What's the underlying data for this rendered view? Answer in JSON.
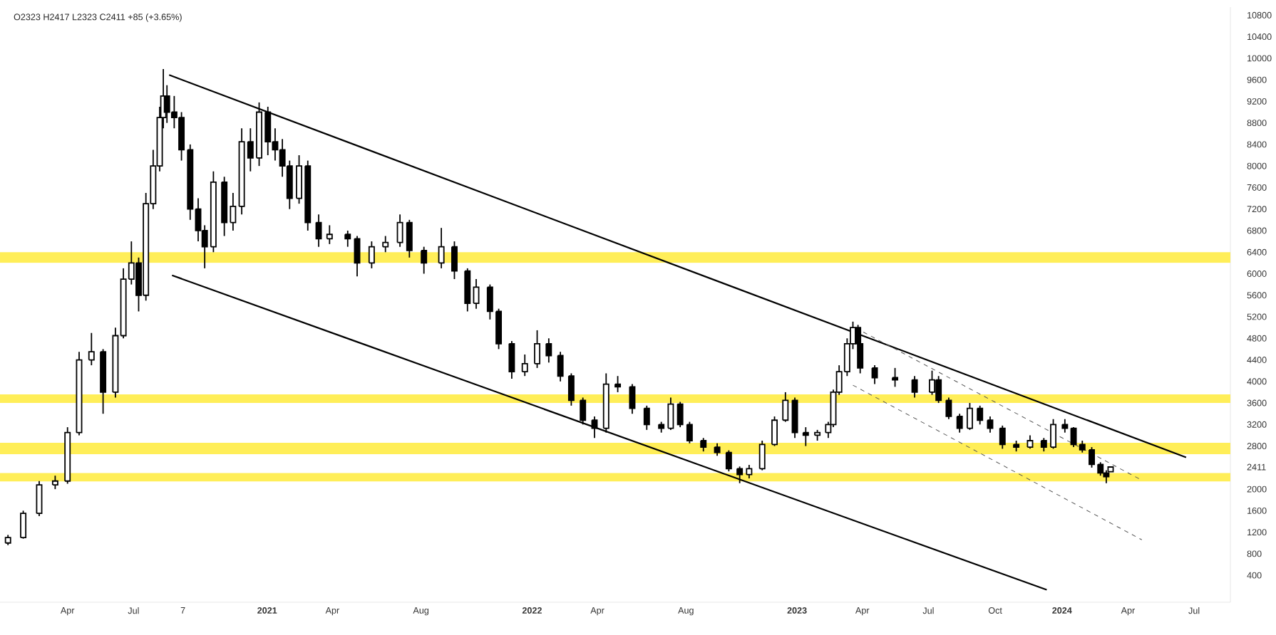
{
  "chart_data": {
    "type": "candlestick",
    "title": "O2323  H2417  L2323  C2411  +85 (+3.65%)",
    "xlim": [
      "2019-12-30",
      "2024-08-20"
    ],
    "ylim": [
      -100,
      10950
    ],
    "xticks": [
      {
        "value": "2020-04-01",
        "label": "Apr"
      },
      {
        "value": "2020-07-01",
        "label": "Jul"
      },
      {
        "value": "2020-09-07",
        "label": "7"
      },
      {
        "value": "2021-01-01",
        "label": "2021"
      },
      {
        "value": "2021-04-01",
        "label": "Apr"
      },
      {
        "value": "2021-08-01",
        "label": "Aug"
      },
      {
        "value": "2022-01-01",
        "label": "2022"
      },
      {
        "value": "2022-04-01",
        "label": "Apr"
      },
      {
        "value": "2022-08-01",
        "label": "Aug"
      },
      {
        "value": "2023-01-01",
        "label": "2023"
      },
      {
        "value": "2023-04-01",
        "label": "Apr"
      },
      {
        "value": "2023-07-01",
        "label": "Jul"
      },
      {
        "value": "2023-10-01",
        "label": "Oct"
      },
      {
        "value": "2024-01-01",
        "label": "2024"
      },
      {
        "value": "2024-04-01",
        "label": "Apr"
      },
      {
        "value": "2024-07-01",
        "label": "Jul"
      }
    ],
    "yticks": [
      400,
      800,
      1200,
      1600,
      2000,
      2411,
      2800,
      3200,
      3600,
      4000,
      4400,
      4800,
      5200,
      5600,
      6000,
      6400,
      6800,
      7200,
      7600,
      8000,
      8400,
      8800,
      9200,
      9600,
      10000,
      10400,
      10800
    ],
    "bands": [
      {
        "axis": "y",
        "from": 6200,
        "to": 6400,
        "color": "#ffee58"
      },
      {
        "axis": "y",
        "from": 3600,
        "to": 3760,
        "color": "#ffee58"
      },
      {
        "axis": "y",
        "from": 2650,
        "to": 2860,
        "color": "#ffee58"
      },
      {
        "axis": "y",
        "from": 2140,
        "to": 2300,
        "color": "#ffee58"
      }
    ],
    "series": [
      {
        "type": "candlestick",
        "color": "#000000",
        "x": [
          "2020-01-10",
          "2020-01-31",
          "2020-02-22",
          "2020-03-15",
          "2020-04-01",
          "2020-04-17",
          "2020-05-04",
          "2020-05-20",
          "2020-06-06",
          "2020-06-17",
          "2020-06-28",
          "2020-07-08",
          "2020-07-18",
          "2020-07-28",
          "2020-08-06",
          "2020-08-11",
          "2020-08-16",
          "2020-08-26",
          "2020-09-05",
          "2020-09-17",
          "2020-09-28",
          "2020-10-07",
          "2020-10-19",
          "2020-11-03",
          "2020-11-15",
          "2020-11-27",
          "2020-12-09",
          "2020-12-21",
          "2021-01-02",
          "2021-01-12",
          "2021-01-22",
          "2021-02-01",
          "2021-02-14",
          "2021-02-26",
          "2021-03-13",
          "2021-03-28",
          "2021-04-22",
          "2021-05-05",
          "2021-05-25",
          "2021-06-13",
          "2021-07-03",
          "2021-07-16",
          "2021-08-05",
          "2021-08-29",
          "2021-09-16",
          "2021-10-04",
          "2021-10-16",
          "2021-11-04",
          "2021-11-16",
          "2021-12-04",
          "2021-12-22",
          "2022-01-08",
          "2022-01-24",
          "2022-02-09",
          "2022-02-24",
          "2022-03-12",
          "2022-03-28",
          "2022-04-13",
          "2022-04-29",
          "2022-05-19",
          "2022-06-08",
          "2022-06-28",
          "2022-07-11",
          "2022-07-24",
          "2022-08-06",
          "2022-08-25",
          "2022-09-13",
          "2022-09-29",
          "2022-10-14",
          "2022-10-27",
          "2022-11-14",
          "2022-12-01",
          "2022-12-16",
          "2022-12-29",
          "2023-01-13",
          "2023-01-29",
          "2023-02-13",
          "2023-02-20",
          "2023-02-28",
          "2023-03-11",
          "2023-03-19",
          "2023-03-26",
          "2023-03-29",
          "2023-04-18",
          "2023-05-16",
          "2023-06-12",
          "2023-07-06",
          "2023-07-15",
          "2023-07-29",
          "2023-08-13",
          "2023-08-27",
          "2023-09-10",
          "2023-09-24",
          "2023-10-11",
          "2023-10-30",
          "2023-11-18",
          "2023-12-07",
          "2023-12-20",
          "2024-01-05",
          "2024-01-17",
          "2024-01-29",
          "2024-02-11",
          "2024-02-23",
          "2024-03-02",
          "2024-03-08"
        ],
        "ohlc": [
          [
            1000,
            1150,
            960,
            1100
          ],
          [
            1100,
            1600,
            1080,
            1550
          ],
          [
            1550,
            2150,
            1500,
            2080
          ],
          [
            2080,
            2250,
            2000,
            2150
          ],
          [
            2150,
            3150,
            2100,
            3050
          ],
          [
            3050,
            4550,
            3000,
            4400
          ],
          [
            4400,
            4900,
            4300,
            4550
          ],
          [
            4550,
            4600,
            3400,
            3800
          ],
          [
            3800,
            5000,
            3700,
            4850
          ],
          [
            4850,
            6100,
            4800,
            5900
          ],
          [
            5900,
            6600,
            5800,
            6200
          ],
          [
            6200,
            6300,
            5300,
            5600
          ],
          [
            5600,
            7500,
            5500,
            7300
          ],
          [
            7300,
            8300,
            7200,
            8000
          ],
          [
            8000,
            9100,
            7900,
            8900
          ],
          [
            8900,
            9800,
            8700,
            9300
          ],
          [
            9300,
            9500,
            8800,
            9000
          ],
          [
            9000,
            9300,
            8700,
            8900
          ],
          [
            8900,
            9000,
            8100,
            8300
          ],
          [
            8300,
            8400,
            7000,
            7200
          ],
          [
            7200,
            7400,
            6600,
            6800
          ],
          [
            6800,
            6900,
            6100,
            6500
          ],
          [
            6500,
            7900,
            6400,
            7700
          ],
          [
            7700,
            7800,
            6700,
            6950
          ],
          [
            6950,
            7500,
            6800,
            7250
          ],
          [
            7250,
            8700,
            7100,
            8450
          ],
          [
            8450,
            8700,
            7900,
            8150
          ],
          [
            8150,
            9180,
            8000,
            9000
          ],
          [
            9000,
            9100,
            8200,
            8450
          ],
          [
            8450,
            8700,
            8100,
            8300
          ],
          [
            8300,
            8500,
            7800,
            8000
          ],
          [
            8000,
            8100,
            7200,
            7400
          ],
          [
            7400,
            8200,
            7300,
            8000
          ],
          [
            8000,
            8100,
            6800,
            6950
          ],
          [
            6950,
            7100,
            6500,
            6650
          ],
          [
            6650,
            6900,
            6550,
            6730
          ],
          [
            6730,
            6800,
            6500,
            6650
          ],
          [
            6650,
            6700,
            5950,
            6200
          ],
          [
            6200,
            6600,
            6100,
            6500
          ],
          [
            6500,
            6700,
            6400,
            6580
          ],
          [
            6580,
            7100,
            6500,
            6950
          ],
          [
            6950,
            7000,
            6300,
            6430
          ],
          [
            6430,
            6500,
            6000,
            6200
          ],
          [
            6200,
            6850,
            6100,
            6500
          ],
          [
            6500,
            6600,
            5900,
            6050
          ],
          [
            6050,
            6100,
            5300,
            5450
          ],
          [
            5450,
            5900,
            5350,
            5750
          ],
          [
            5750,
            5800,
            5150,
            5300
          ],
          [
            5300,
            5350,
            4600,
            4700
          ],
          [
            4700,
            4750,
            4050,
            4180
          ],
          [
            4180,
            4500,
            4100,
            4330
          ],
          [
            4330,
            4950,
            4250,
            4700
          ],
          [
            4700,
            4800,
            4350,
            4480
          ],
          [
            4480,
            4550,
            4000,
            4100
          ],
          [
            4100,
            4150,
            3550,
            3650
          ],
          [
            3650,
            3700,
            3200,
            3280
          ],
          [
            3280,
            3350,
            2950,
            3130
          ],
          [
            3130,
            4150,
            3050,
            3950
          ],
          [
            3950,
            4100,
            3800,
            3900
          ],
          [
            3900,
            3950,
            3400,
            3500
          ],
          [
            3500,
            3550,
            3100,
            3200
          ],
          [
            3200,
            3250,
            3050,
            3130
          ],
          [
            3130,
            3700,
            3100,
            3580
          ],
          [
            3580,
            3620,
            3150,
            3200
          ],
          [
            3200,
            3250,
            2850,
            2900
          ],
          [
            2900,
            2950,
            2700,
            2780
          ],
          [
            2780,
            2850,
            2620,
            2680
          ],
          [
            2680,
            2720,
            2330,
            2380
          ],
          [
            2380,
            2420,
            2110,
            2270
          ],
          [
            2270,
            2450,
            2200,
            2380
          ],
          [
            2380,
            2900,
            2350,
            2830
          ],
          [
            2830,
            3350,
            2800,
            3280
          ],
          [
            3280,
            3800,
            3250,
            3650
          ],
          [
            3650,
            3700,
            2950,
            3050
          ],
          [
            3050,
            3150,
            2800,
            3000
          ],
          [
            3000,
            3100,
            2900,
            3050
          ],
          [
            3050,
            3250,
            2950,
            3200
          ],
          [
            3200,
            3850,
            3150,
            3800
          ],
          [
            3800,
            4300,
            3750,
            4180
          ],
          [
            4180,
            4800,
            4100,
            4700
          ],
          [
            4700,
            5110,
            4600,
            5000
          ],
          [
            5000,
            5050,
            4550,
            4700
          ],
          [
            4700,
            4750,
            4150,
            4250
          ],
          [
            4250,
            4300,
            3950,
            4070
          ],
          [
            4070,
            4250,
            3900,
            4030
          ],
          [
            4030,
            4100,
            3700,
            3800
          ],
          [
            3800,
            4200,
            3750,
            4030
          ],
          [
            4030,
            4100,
            3600,
            3650
          ],
          [
            3650,
            3700,
            3300,
            3350
          ],
          [
            3350,
            3400,
            3050,
            3130
          ],
          [
            3130,
            3600,
            3100,
            3500
          ],
          [
            3500,
            3550,
            3200,
            3280
          ],
          [
            3280,
            3350,
            3050,
            3130
          ],
          [
            3130,
            3180,
            2750,
            2830
          ],
          [
            2830,
            2900,
            2700,
            2780
          ],
          [
            2780,
            3000,
            2750,
            2900
          ],
          [
            2900,
            2950,
            2700,
            2780
          ],
          [
            2780,
            3300,
            2750,
            3200
          ],
          [
            3200,
            3300,
            3050,
            3130
          ],
          [
            3130,
            3150,
            2780,
            2830
          ],
          [
            2830,
            2900,
            2680,
            2730
          ],
          [
            2730,
            2780,
            2400,
            2460
          ],
          [
            2460,
            2500,
            2250,
            2300
          ],
          [
            2300,
            2350,
            2110,
            2230
          ],
          [
            2323,
            2417,
            2323,
            2411
          ]
        ]
      },
      {
        "type": "line",
        "color": "#000000",
        "line_style": "solid",
        "x": [
          "2020-08-19",
          "2024-06-20"
        ],
        "values": [
          9690,
          2590
        ]
      },
      {
        "type": "line",
        "color": "#000000",
        "line_style": "solid",
        "x": [
          "2020-08-23",
          "2023-12-11"
        ],
        "values": [
          5970,
          130
        ]
      },
      {
        "type": "line",
        "color": "#555555",
        "line_style": "dashed",
        "x": [
          "2023-03-23",
          "2024-04-18"
        ],
        "values": [
          4990,
          2180
        ]
      },
      {
        "type": "line",
        "color": "#555555",
        "line_style": "dashed",
        "x": [
          "2023-03-19",
          "2024-04-20"
        ],
        "values": [
          3930,
          1060
        ]
      }
    ]
  }
}
